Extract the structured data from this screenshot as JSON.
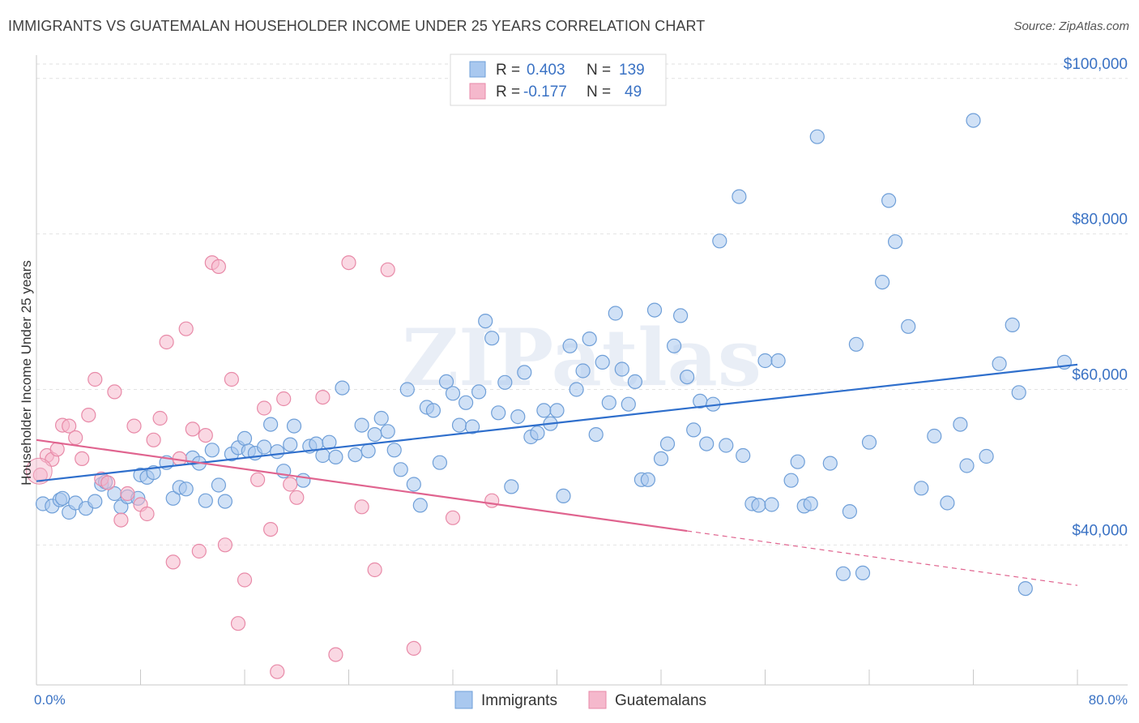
{
  "header": {
    "title": "IMMIGRANTS VS GUATEMALAN HOUSEHOLDER INCOME UNDER 25 YEARS CORRELATION CHART",
    "source": "Source: ZipAtlas.com"
  },
  "watermark": "ZIPatlas",
  "chart_data": {
    "type": "scatter",
    "xlabel": "",
    "ylabel": "Householder Income Under 25 years",
    "xlim": [
      0,
      80
    ],
    "ylim": [
      22000,
      103000
    ],
    "x_tick_labels": [
      "0.0%",
      "80.0%"
    ],
    "y_ticks": [
      {
        "value": 40000,
        "label": "$40,000"
      },
      {
        "value": 60000,
        "label": "$60,000"
      },
      {
        "value": 80000,
        "label": "$80,000"
      },
      {
        "value": 100000,
        "label": "$100,000"
      }
    ],
    "grid": true,
    "legend_position": "top-center",
    "stats": [
      {
        "r_label": "R = ",
        "r": "0.403",
        "n_label": "N = ",
        "n": "139",
        "color": "#a9c8ef"
      },
      {
        "r_label": "R = ",
        "r": "-0.177",
        "n_label": "N = ",
        "n": "49",
        "color": "#f5b8cc"
      }
    ],
    "series": [
      {
        "name": "Immigrants",
        "color": "#a9c8ef",
        "stroke": "#6f9fd8",
        "trend": {
          "x0": 0,
          "y0": 48200,
          "x1": 80,
          "y1": 63200,
          "color": "#2f6fcc"
        },
        "points": [
          [
            0.5,
            45300
          ],
          [
            1.2,
            45000
          ],
          [
            1.8,
            45800
          ],
          [
            2.0,
            46000
          ],
          [
            2.5,
            44200
          ],
          [
            3.0,
            45400
          ],
          [
            3.8,
            44700
          ],
          [
            4.5,
            45600
          ],
          [
            5.0,
            47800
          ],
          [
            5.3,
            48100
          ],
          [
            6.0,
            46600
          ],
          [
            6.5,
            44900
          ],
          [
            7.0,
            46200
          ],
          [
            7.8,
            46000
          ],
          [
            8.0,
            49000
          ],
          [
            8.5,
            48700
          ],
          [
            9.0,
            49300
          ],
          [
            10.0,
            50600
          ],
          [
            10.5,
            46000
          ],
          [
            11.0,
            47400
          ],
          [
            11.5,
            47200
          ],
          [
            12.0,
            51200
          ],
          [
            12.5,
            50500
          ],
          [
            13.0,
            45700
          ],
          [
            13.5,
            52200
          ],
          [
            14.0,
            47700
          ],
          [
            14.5,
            45600
          ],
          [
            15.0,
            51700
          ],
          [
            15.5,
            52500
          ],
          [
            16.0,
            53700
          ],
          [
            16.3,
            52100
          ],
          [
            16.8,
            51800
          ],
          [
            17.5,
            52600
          ],
          [
            18.0,
            55500
          ],
          [
            18.5,
            52000
          ],
          [
            19.0,
            49500
          ],
          [
            19.5,
            52900
          ],
          [
            19.8,
            55300
          ],
          [
            20.5,
            48300
          ],
          [
            21.0,
            52700
          ],
          [
            21.5,
            53000
          ],
          [
            22.0,
            51500
          ],
          [
            22.5,
            53200
          ],
          [
            23.0,
            51300
          ],
          [
            23.5,
            60200
          ],
          [
            24.5,
            51600
          ],
          [
            25.0,
            55400
          ],
          [
            25.5,
            52100
          ],
          [
            26.0,
            54200
          ],
          [
            26.5,
            56300
          ],
          [
            27.0,
            54600
          ],
          [
            27.5,
            52200
          ],
          [
            28.0,
            49700
          ],
          [
            28.5,
            60000
          ],
          [
            29.0,
            47800
          ],
          [
            29.5,
            45100
          ],
          [
            30.0,
            57700
          ],
          [
            30.5,
            57300
          ],
          [
            31.0,
            50600
          ],
          [
            31.5,
            61000
          ],
          [
            32.0,
            59500
          ],
          [
            32.5,
            55400
          ],
          [
            33.0,
            58300
          ],
          [
            33.5,
            55200
          ],
          [
            34.0,
            59700
          ],
          [
            34.5,
            68800
          ],
          [
            35.0,
            66600
          ],
          [
            35.5,
            57000
          ],
          [
            36.0,
            60900
          ],
          [
            36.5,
            47500
          ],
          [
            37.0,
            56500
          ],
          [
            37.5,
            62200
          ],
          [
            38.0,
            53900
          ],
          [
            38.5,
            54400
          ],
          [
            39.0,
            57300
          ],
          [
            39.5,
            55600
          ],
          [
            40.0,
            57300
          ],
          [
            40.5,
            46300
          ],
          [
            41.0,
            65600
          ],
          [
            41.5,
            60000
          ],
          [
            42.0,
            62400
          ],
          [
            42.5,
            66500
          ],
          [
            43.0,
            54200
          ],
          [
            43.5,
            63500
          ],
          [
            44.0,
            58300
          ],
          [
            44.5,
            69800
          ],
          [
            45.0,
            62600
          ],
          [
            45.5,
            58100
          ],
          [
            46.0,
            61000
          ],
          [
            46.5,
            48400
          ],
          [
            47.0,
            48400
          ],
          [
            47.5,
            70200
          ],
          [
            48.0,
            51100
          ],
          [
            48.5,
            53000
          ],
          [
            49.0,
            65600
          ],
          [
            49.5,
            69500
          ],
          [
            50.0,
            61600
          ],
          [
            50.5,
            54800
          ],
          [
            51.0,
            58500
          ],
          [
            51.5,
            53000
          ],
          [
            52.0,
            58100
          ],
          [
            52.5,
            79100
          ],
          [
            53.0,
            52800
          ],
          [
            54.0,
            84800
          ],
          [
            54.3,
            51500
          ],
          [
            55.0,
            45300
          ],
          [
            55.5,
            45100
          ],
          [
            56.0,
            63700
          ],
          [
            56.5,
            45200
          ],
          [
            57.0,
            63700
          ],
          [
            58.0,
            48300
          ],
          [
            58.5,
            50700
          ],
          [
            59.0,
            45000
          ],
          [
            59.5,
            45300
          ],
          [
            60.0,
            92500
          ],
          [
            61.0,
            50500
          ],
          [
            62.0,
            36300
          ],
          [
            62.5,
            44300
          ],
          [
            63.0,
            65800
          ],
          [
            63.5,
            36400
          ],
          [
            64.0,
            53200
          ],
          [
            65.0,
            73800
          ],
          [
            65.5,
            84300
          ],
          [
            66.0,
            79000
          ],
          [
            67.0,
            68100
          ],
          [
            68.0,
            47300
          ],
          [
            69.0,
            54000
          ],
          [
            70.0,
            45400
          ],
          [
            71.0,
            55500
          ],
          [
            71.5,
            50200
          ],
          [
            72.0,
            94600
          ],
          [
            73.0,
            51400
          ],
          [
            74.0,
            63300
          ],
          [
            75.0,
            68300
          ],
          [
            75.5,
            59600
          ],
          [
            76.0,
            34400
          ],
          [
            79.0,
            63500
          ]
        ]
      },
      {
        "name": "Guatemalans",
        "color": "#f5b8cc",
        "stroke": "#e88aa8",
        "trend": {
          "x0": 0,
          "y0": 53500,
          "x1": 50,
          "y1": 41800,
          "dash_to": {
            "x": 80,
            "y": 34800
          },
          "color": "#e0648f"
        },
        "points": [
          [
            0.3,
            49000
          ],
          [
            0.8,
            51500
          ],
          [
            1.2,
            51000
          ],
          [
            1.6,
            52300
          ],
          [
            2.0,
            55400
          ],
          [
            2.5,
            55300
          ],
          [
            3.0,
            53800
          ],
          [
            3.5,
            51100
          ],
          [
            4.0,
            56700
          ],
          [
            4.5,
            61300
          ],
          [
            5.0,
            48500
          ],
          [
            5.5,
            48000
          ],
          [
            6.0,
            59700
          ],
          [
            6.5,
            43200
          ],
          [
            7.0,
            46600
          ],
          [
            7.5,
            55300
          ],
          [
            8.0,
            45200
          ],
          [
            8.5,
            44000
          ],
          [
            9.0,
            53500
          ],
          [
            9.5,
            56300
          ],
          [
            10.0,
            66100
          ],
          [
            10.5,
            37800
          ],
          [
            11.0,
            51100
          ],
          [
            11.5,
            67800
          ],
          [
            12.0,
            54900
          ],
          [
            12.5,
            39200
          ],
          [
            13.0,
            54100
          ],
          [
            13.5,
            76300
          ],
          [
            14.0,
            75800
          ],
          [
            14.5,
            40000
          ],
          [
            15.0,
            61300
          ],
          [
            15.5,
            29900
          ],
          [
            16.0,
            35500
          ],
          [
            17.0,
            48400
          ],
          [
            17.5,
            57600
          ],
          [
            18.0,
            42000
          ],
          [
            18.5,
            23700
          ],
          [
            19.0,
            58800
          ],
          [
            19.5,
            47800
          ],
          [
            20.0,
            46100
          ],
          [
            22.0,
            59000
          ],
          [
            23.0,
            25900
          ],
          [
            24.0,
            76300
          ],
          [
            25.0,
            44900
          ],
          [
            26.0,
            36800
          ],
          [
            27.0,
            75400
          ],
          [
            29.0,
            26700
          ],
          [
            32.0,
            43500
          ],
          [
            35.0,
            45700
          ]
        ]
      }
    ]
  }
}
